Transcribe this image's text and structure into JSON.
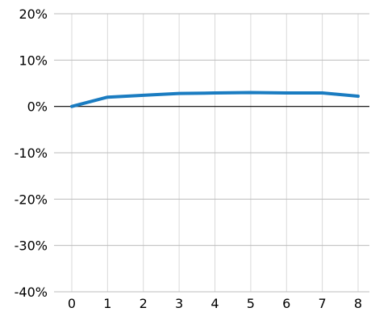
{
  "chart_data": {
    "type": "line",
    "title": "",
    "xlabel": "",
    "ylabel": "",
    "x": [
      0,
      1,
      2,
      3,
      4,
      5,
      6,
      7,
      8
    ],
    "x_tick_labels": [
      "0",
      "1",
      "2",
      "3",
      "4",
      "5",
      "6",
      "7",
      "8"
    ],
    "y_ticks": [
      20,
      10,
      0,
      -10,
      -20,
      -30,
      -40
    ],
    "y_tick_labels": [
      "20%",
      "10%",
      "0%",
      "-10%",
      "-20%",
      "-30%",
      "-40%"
    ],
    "ylim": [
      -40,
      20
    ],
    "xlim": [
      0,
      8
    ],
    "grid": true,
    "series": [
      {
        "values": [
          0,
          2.0,
          2.4,
          2.8,
          2.9,
          3.0,
          2.9,
          2.9,
          2.2
        ],
        "color": "#1a7cc1"
      }
    ],
    "colors": {
      "grid": "#d9d9d9",
      "zero_line": "#000000",
      "axis": "#bdbdbd"
    }
  }
}
